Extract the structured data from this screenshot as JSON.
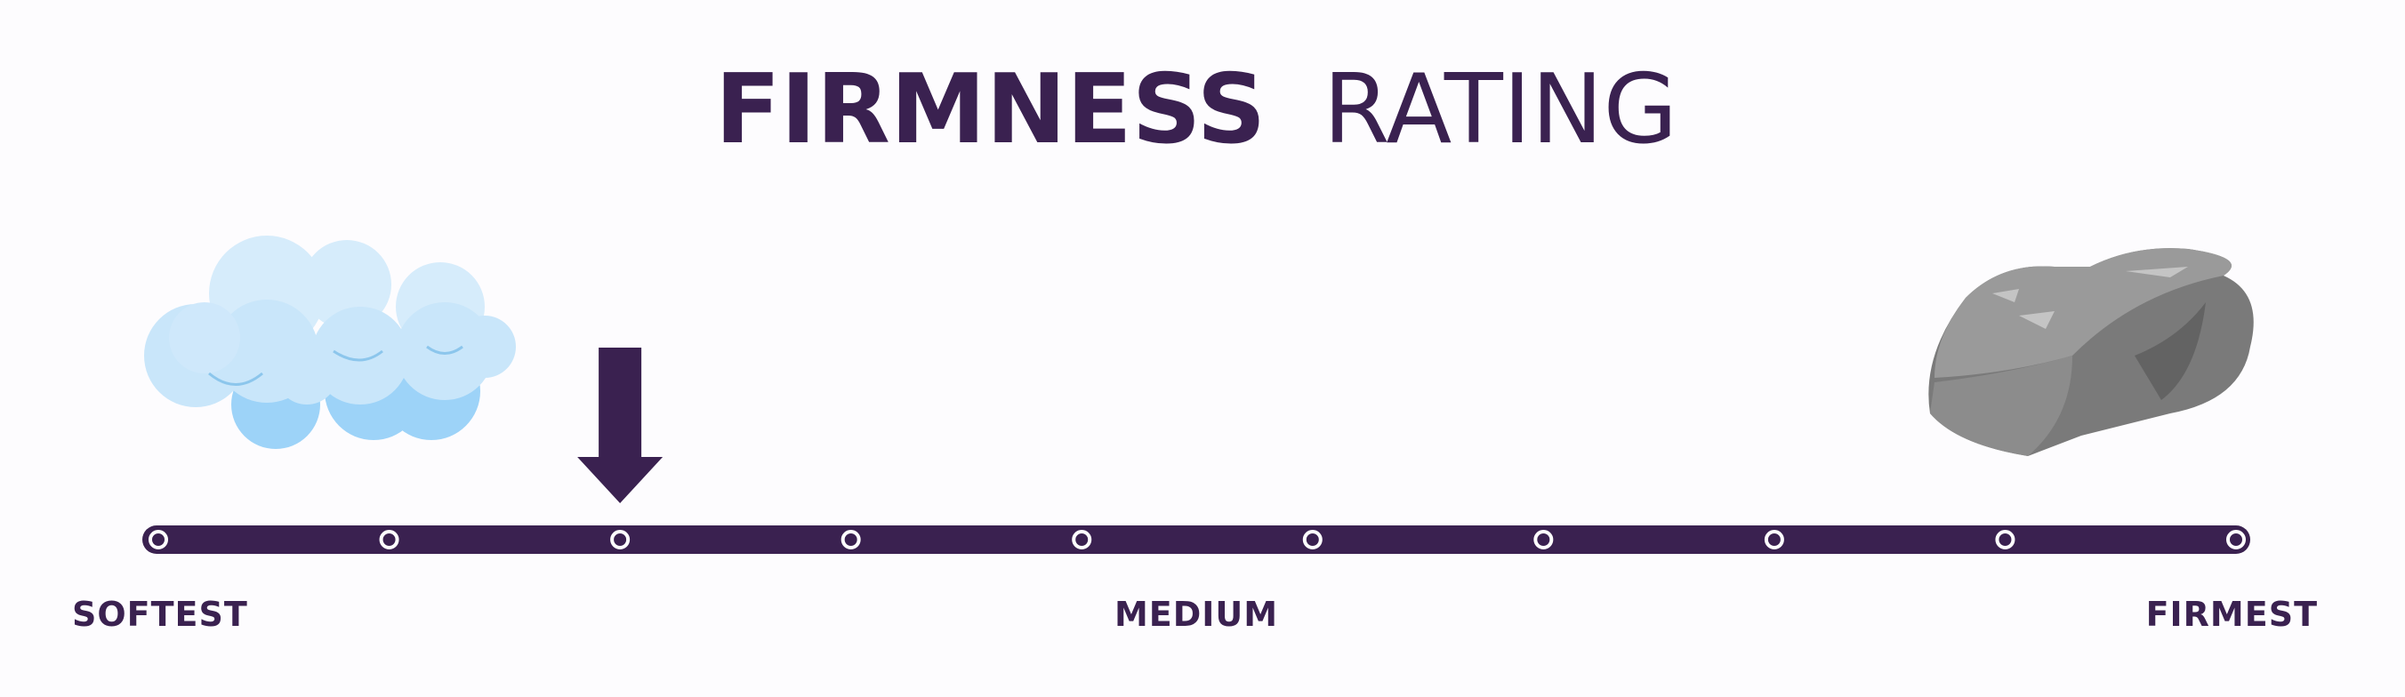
{
  "title": {
    "bold": "FIRMNESS",
    "light": "RATING"
  },
  "scale": {
    "points": 10,
    "rating": 3,
    "labels": {
      "low": "SOFTEST",
      "mid": "MEDIUM",
      "high": "FIRMEST"
    }
  }
}
